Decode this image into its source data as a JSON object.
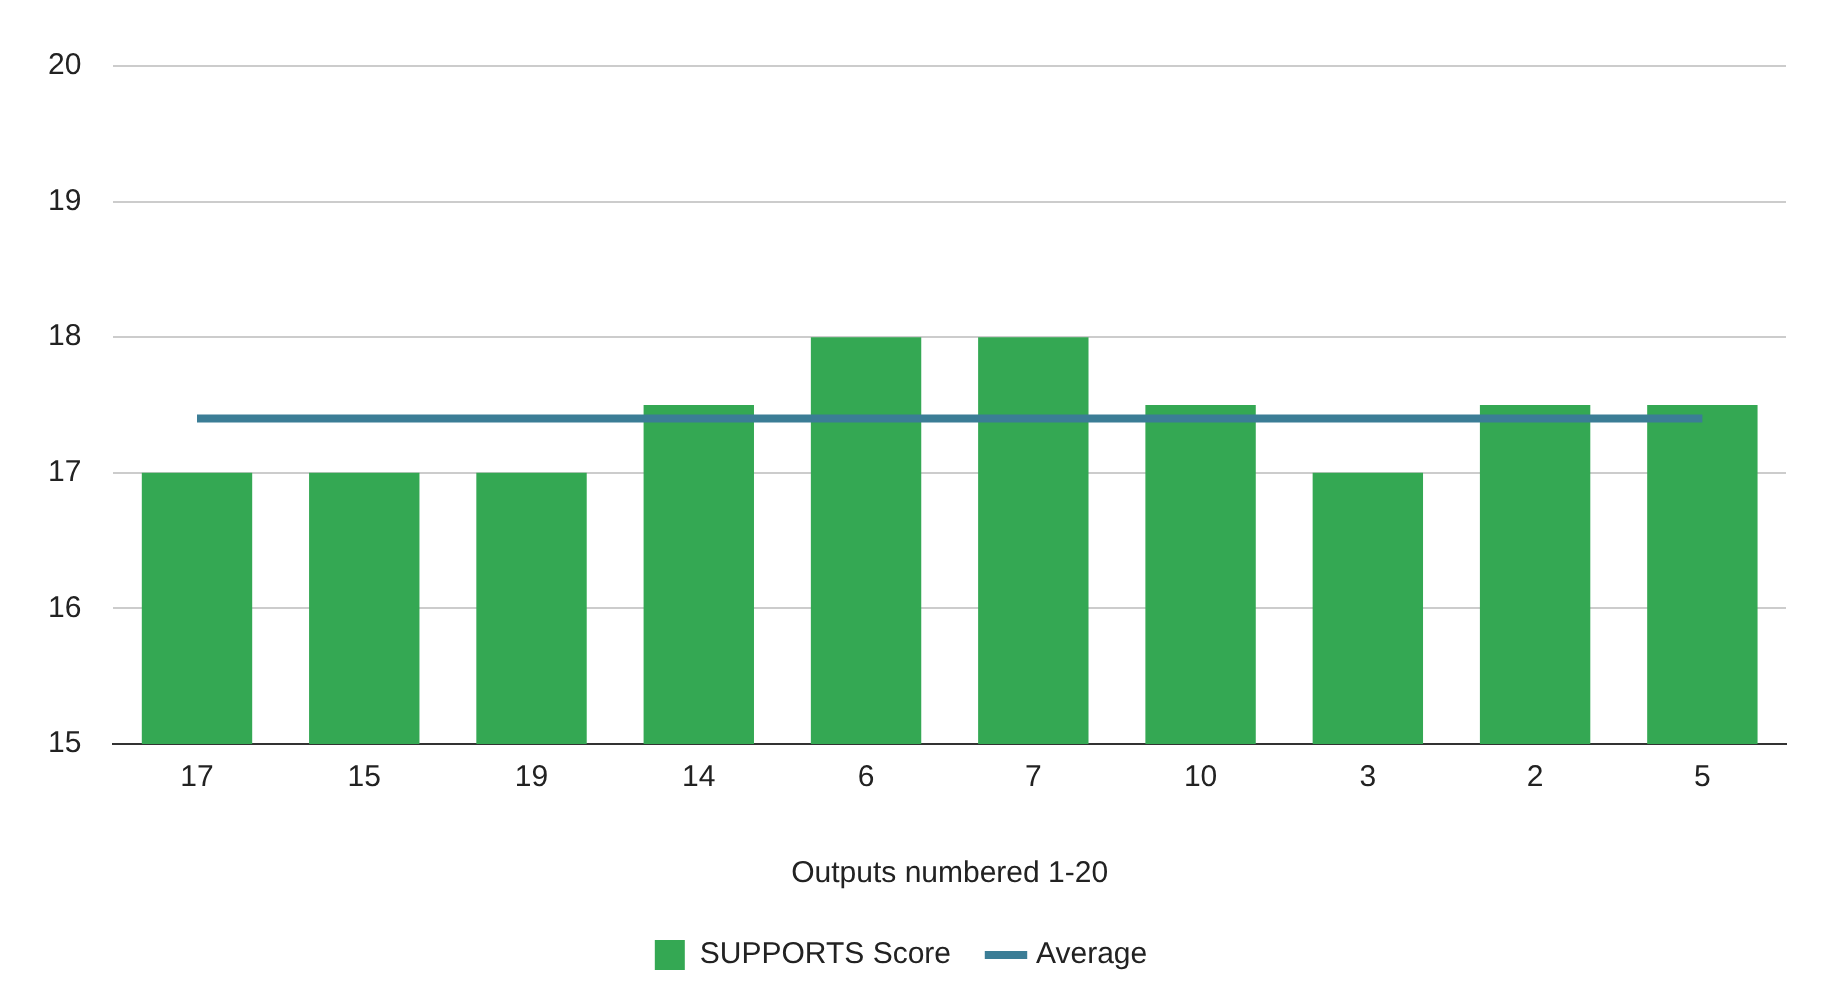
{
  "chart_data": {
    "type": "bar",
    "xlabel": "Outputs numbered 1-20",
    "categories": [
      "17",
      "15",
      "19",
      "14",
      "6",
      "7",
      "10",
      "3",
      "2",
      "5"
    ],
    "series": [
      {
        "name": "SUPPORTS Score",
        "color": "#34a853",
        "values": [
          17,
          17,
          17,
          17.5,
          18,
          18,
          17.5,
          17,
          17.5,
          17.5
        ]
      },
      {
        "name": "Average",
        "type": "line",
        "color": "#3b7d96",
        "values": [
          17.4,
          17.4,
          17.4,
          17.4,
          17.4,
          17.4,
          17.4,
          17.4,
          17.4,
          17.4
        ]
      }
    ],
    "ylim": [
      15,
      20
    ],
    "yticks": [
      15,
      16,
      17,
      18,
      19,
      20
    ],
    "grid": "y",
    "legend": "bottom",
    "marker": "none"
  }
}
